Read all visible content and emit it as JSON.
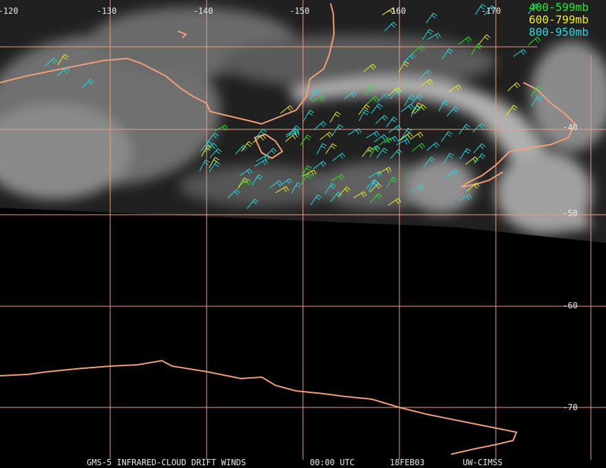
{
  "map": {
    "longitude_labels": [
      "-120",
      "-130",
      "-140",
      "-150",
      "-160",
      "-170"
    ],
    "latitude_labels": [
      "-40",
      "-50",
      "-60",
      "-70"
    ],
    "legend": [
      {
        "label": "400-599mb",
        "color": "#22ee22"
      },
      {
        "label": "600-799mb",
        "color": "#f0f020"
      },
      {
        "label": "800-950mb",
        "color": "#22e0e8"
      }
    ],
    "footer": [
      "GMS-5 INFRARED-CLOUD DRIFT WINDS",
      "00:00 UTC",
      "18FEB03",
      "UW-CIMSS"
    ]
  }
}
